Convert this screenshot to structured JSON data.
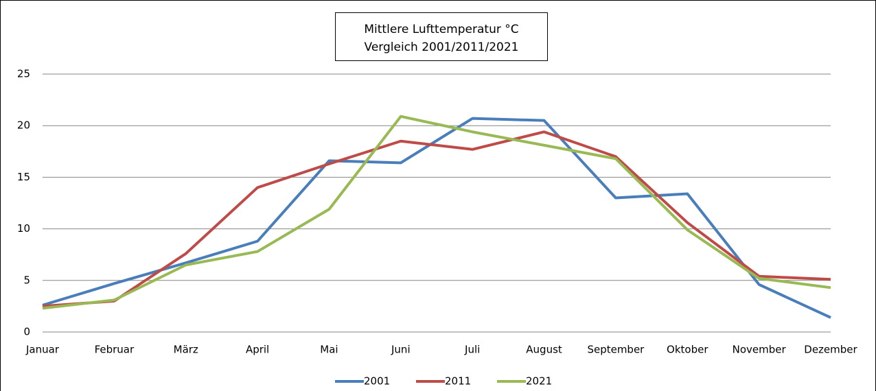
{
  "chart_data": {
    "type": "line",
    "title": [
      "Mittlere Lufttemperatur °C",
      "Vergleich  2001/2011/2021"
    ],
    "categories": [
      "Januar",
      "Februar",
      "März",
      "April",
      "Mai",
      "Juni",
      "Juli",
      "August",
      "September",
      "Oktober",
      "November",
      "Dezember"
    ],
    "series": [
      {
        "name": "2001",
        "color": "#4a7ebb",
        "values": [
          2.6,
          4.7,
          6.7,
          8.8,
          16.6,
          16.4,
          20.7,
          20.5,
          13.0,
          13.4,
          4.6,
          1.4
        ]
      },
      {
        "name": "2011",
        "color": "#be4b48",
        "values": [
          2.5,
          3.0,
          7.6,
          14.0,
          16.3,
          18.5,
          17.7,
          19.4,
          17.0,
          10.6,
          5.4,
          5.1
        ]
      },
      {
        "name": "2021",
        "color": "#98b954",
        "values": [
          2.3,
          3.1,
          6.5,
          7.8,
          11.9,
          20.9,
          19.4,
          18.1,
          16.8,
          9.9,
          5.2,
          4.3
        ]
      }
    ],
    "ylim": [
      0,
      25
    ],
    "yticks": [
      0,
      5,
      10,
      15,
      20,
      25
    ],
    "grid": true,
    "legend": "bottom"
  }
}
